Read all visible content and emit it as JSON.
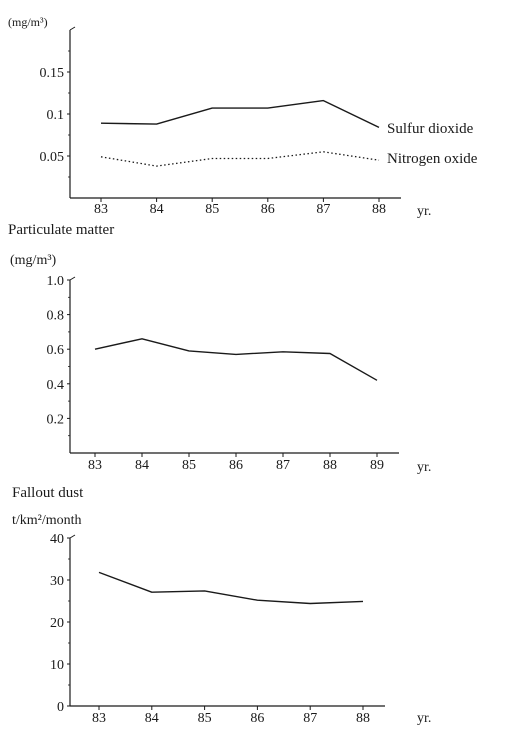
{
  "chart_data": [
    {
      "type": "line",
      "title": "",
      "ylabel": "(mg/m³)",
      "xlabel": "yr.",
      "categories": [
        "83",
        "84",
        "85",
        "86",
        "87",
        "88"
      ],
      "y_ticks": [
        "0.05",
        "0.1",
        "0.15"
      ],
      "ylim": [
        0,
        0.2
      ],
      "grid": false,
      "series": [
        {
          "name": "Sulfur dioxide",
          "style": "solid",
          "values": [
            0.089,
            0.088,
            0.107,
            0.107,
            0.116,
            0.084
          ]
        },
        {
          "name": "Nitrogen oxide",
          "style": "dotted",
          "values": [
            0.049,
            0.038,
            0.047,
            0.047,
            0.055,
            0.045
          ]
        }
      ]
    },
    {
      "type": "line",
      "title": "Particulate matter",
      "ylabel": "(mg/m³)",
      "xlabel": "yr.",
      "categories": [
        "83",
        "84",
        "85",
        "86",
        "87",
        "88",
        "89"
      ],
      "y_ticks": [
        "0.2",
        "0.4",
        "0.6",
        "0.8",
        "1.0"
      ],
      "ylim": [
        0,
        1.0
      ],
      "grid": false,
      "series": [
        {
          "style": "solid",
          "values": [
            0.6,
            0.66,
            0.59,
            0.57,
            0.585,
            0.575,
            0.42
          ]
        }
      ]
    },
    {
      "type": "line",
      "title": "Fallout dust",
      "ylabel": "t/km²/month",
      "xlabel": "yr.",
      "categories": [
        "83",
        "84",
        "85",
        "86",
        "87",
        "88"
      ],
      "y_ticks": [
        "0",
        "10",
        "20",
        "30",
        "40"
      ],
      "ylim": [
        0,
        40
      ],
      "grid": false,
      "series": [
        {
          "style": "solid",
          "values": [
            31.8,
            27.1,
            27.4,
            25.2,
            24.4,
            24.9
          ]
        }
      ]
    }
  ]
}
